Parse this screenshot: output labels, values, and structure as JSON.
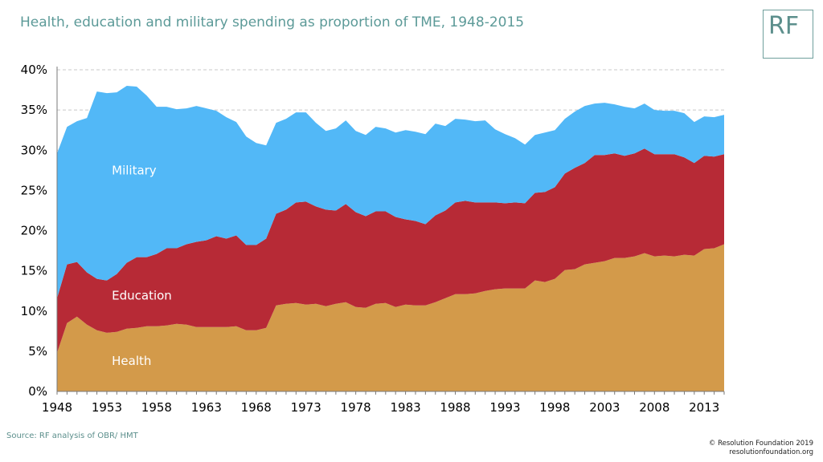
{
  "title": "Health, education and military spending as proportion of TME, 1948-2015",
  "logo_text": "RF",
  "source": "Source: RF analysis of OBR/ HMT",
  "footer": {
    "copyright": "© Resolution Foundation 2019",
    "website": "resolutionfoundation.org"
  },
  "colors": {
    "military": "#52b8f7",
    "education": "#b72a36",
    "health": "#d39a4a",
    "grid": "#c8c8c8",
    "title": "#5c9a98"
  },
  "chart_data": {
    "type": "area",
    "stacked": true,
    "x": [
      1948,
      1949,
      1950,
      1951,
      1952,
      1953,
      1954,
      1955,
      1956,
      1957,
      1958,
      1959,
      1960,
      1961,
      1962,
      1963,
      1964,
      1965,
      1966,
      1967,
      1968,
      1969,
      1970,
      1971,
      1972,
      1973,
      1974,
      1975,
      1976,
      1977,
      1978,
      1979,
      1980,
      1981,
      1982,
      1983,
      1984,
      1985,
      1986,
      1987,
      1988,
      1989,
      1990,
      1991,
      1992,
      1993,
      1994,
      1995,
      1996,
      1997,
      1998,
      1999,
      2000,
      2001,
      2002,
      2003,
      2004,
      2005,
      2006,
      2007,
      2008,
      2009,
      2010,
      2011,
      2012,
      2013,
      2014,
      2015
    ],
    "x_ticks": [
      "1948",
      "1953",
      "1958",
      "1963",
      "1968",
      "1973",
      "1978",
      "1983",
      "1988",
      "1993",
      "1998",
      "2003",
      "2008",
      "2013"
    ],
    "y_ticks": [
      "0%",
      "5%",
      "10%",
      "15%",
      "20%",
      "25%",
      "30%",
      "35%",
      "40%"
    ],
    "ylim": [
      0,
      40
    ],
    "grid": true,
    "series": [
      {
        "name": "Health",
        "values": [
          4.8,
          8.5,
          9.3,
          8.3,
          7.6,
          7.3,
          7.4,
          7.8,
          7.9,
          8.1,
          8.1,
          8.2,
          8.4,
          8.3,
          8.0,
          8.0,
          8.0,
          8.0,
          8.1,
          7.6,
          7.6,
          7.9,
          10.7,
          10.9,
          11.0,
          10.8,
          10.9,
          10.6,
          10.9,
          11.1,
          10.5,
          10.4,
          10.9,
          11.0,
          10.5,
          10.8,
          10.7,
          10.7,
          11.1,
          11.6,
          12.1,
          12.1,
          12.2,
          12.5,
          12.7,
          12.8,
          12.8,
          12.8,
          13.8,
          13.6,
          14.0,
          15.1,
          15.2,
          15.8,
          16.0,
          16.2,
          16.6,
          16.6,
          16.8,
          17.2,
          16.8,
          16.9,
          16.8,
          17.0,
          16.9,
          17.7,
          17.8,
          18.3
        ]
      },
      {
        "name": "Education",
        "values": [
          6.8,
          7.3,
          6.8,
          6.5,
          6.4,
          6.5,
          7.2,
          8.2,
          8.8,
          8.6,
          9.0,
          9.6,
          9.4,
          10.0,
          10.6,
          10.8,
          11.3,
          11.0,
          11.3,
          10.6,
          10.6,
          11.1,
          11.4,
          11.7,
          12.5,
          12.8,
          12.1,
          12.0,
          11.6,
          12.2,
          11.8,
          11.4,
          11.5,
          11.4,
          11.2,
          10.6,
          10.5,
          10.1,
          10.8,
          10.9,
          11.4,
          11.6,
          11.3,
          11.0,
          10.8,
          10.6,
          10.7,
          10.6,
          10.9,
          11.2,
          11.4,
          12.0,
          12.6,
          12.6,
          13.4,
          13.2,
          13.0,
          12.7,
          12.8,
          13.0,
          12.7,
          12.6,
          12.7,
          12.1,
          11.5,
          11.6,
          11.4,
          11.2
        ]
      },
      {
        "name": "Military",
        "values": [
          18.0,
          17.1,
          17.5,
          19.2,
          23.3,
          23.3,
          22.6,
          22.0,
          21.2,
          20.1,
          18.3,
          17.6,
          17.3,
          16.9,
          16.9,
          16.4,
          15.6,
          15.1,
          14.1,
          13.5,
          12.7,
          11.6,
          11.3,
          11.3,
          11.2,
          11.1,
          10.4,
          9.8,
          10.2,
          10.4,
          10.1,
          10.1,
          10.5,
          10.3,
          10.5,
          11.1,
          11.1,
          11.2,
          11.4,
          10.5,
          10.4,
          10.1,
          10.1,
          10.2,
          9.1,
          8.6,
          8.0,
          7.3,
          7.2,
          7.4,
          7.1,
          6.8,
          7.0,
          7.1,
          6.4,
          6.5,
          6.1,
          6.1,
          5.6,
          5.6,
          5.5,
          5.4,
          5.4,
          5.5,
          5.1,
          4.9,
          4.9,
          4.9
        ]
      }
    ],
    "annotations": [
      {
        "label": "Military",
        "x": 1953.5,
        "y": 27
      },
      {
        "label": "Education",
        "x": 1953.5,
        "y": 11.4
      },
      {
        "label": "Health",
        "x": 1953.5,
        "y": 3.3
      }
    ]
  }
}
